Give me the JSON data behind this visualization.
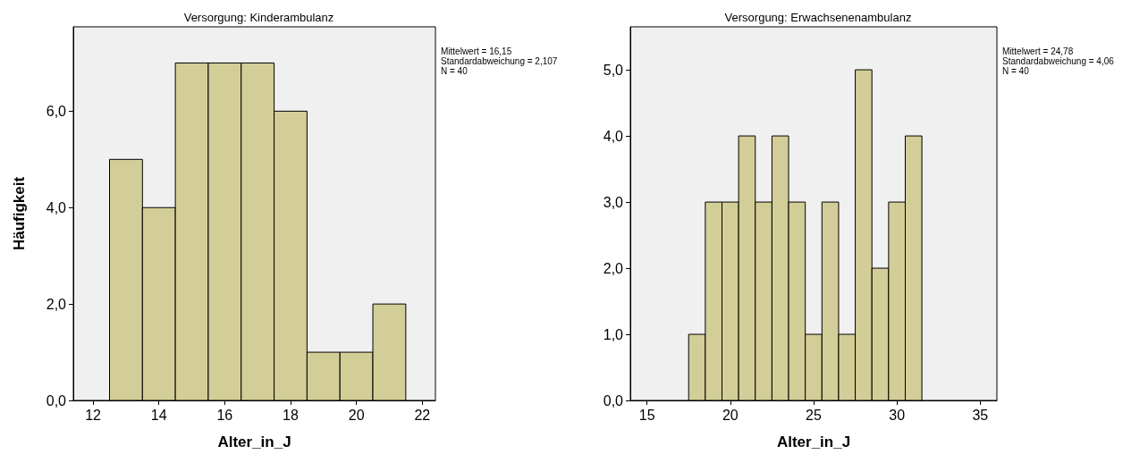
{
  "chart_data": [
    {
      "type": "histogram",
      "title": "Versorgung: Kinderambulanz",
      "xlabel": "Alter_in_J",
      "ylabel": "Häufigkeit",
      "color": "#d3ce97",
      "grid": false,
      "bins": [
        12.5,
        13.5,
        14.5,
        15.5,
        16.5,
        17.5,
        18.5,
        19.5,
        20.5,
        21.5
      ],
      "values": [
        5,
        4,
        7,
        7,
        7,
        6,
        1,
        1,
        2
      ],
      "xlim": [
        11.4,
        22.4
      ],
      "xticks": [
        12,
        14,
        16,
        18,
        20,
        22
      ],
      "ylim": [
        0,
        7.75
      ],
      "yticks": [
        {
          "value": 0,
          "label": "0,0"
        },
        {
          "value": 2,
          "label": "2,0"
        },
        {
          "value": 4,
          "label": "4,0"
        },
        {
          "value": 6,
          "label": "6,0"
        }
      ],
      "annotations": [
        "Mittelwert = 16,15",
        "Standardabweichung = 2,107",
        "N = 40"
      ]
    },
    {
      "type": "histogram",
      "title": "Versorgung: Erwachsenenambulanz",
      "xlabel": "Alter_in_J",
      "color": "#d3ce97",
      "grid": false,
      "bins": [
        17.5,
        18.5,
        19.5,
        20.5,
        21.5,
        22.5,
        23.5,
        24.5,
        25.5,
        26.5,
        27.5,
        28.5,
        29.5,
        30.5,
        31.5
      ],
      "values": [
        1,
        3,
        3,
        4,
        3,
        4,
        3,
        1,
        3,
        1,
        5,
        2,
        3,
        4
      ],
      "xlim": [
        14,
        36
      ],
      "xticks": [
        15,
        20,
        25,
        30,
        35
      ],
      "ylim": [
        0,
        5.65
      ],
      "yticks": [
        {
          "value": 0,
          "label": "0,0"
        },
        {
          "value": 1,
          "label": "1,0"
        },
        {
          "value": 2,
          "label": "2,0"
        },
        {
          "value": 3,
          "label": "3,0"
        },
        {
          "value": 4,
          "label": "4,0"
        },
        {
          "value": 5,
          "label": "5,0"
        }
      ],
      "annotations": [
        "Mittelwert = 24,78",
        "Standardabweichung = 4,06",
        "N = 40"
      ]
    }
  ]
}
